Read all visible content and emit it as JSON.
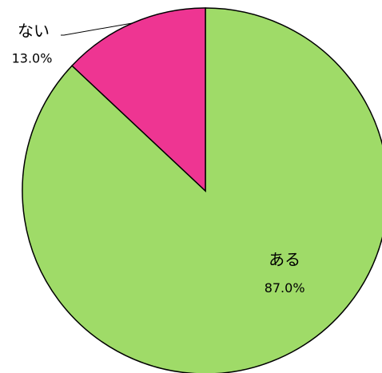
{
  "chart_data": {
    "type": "pie",
    "categories": [
      "ある",
      "ない"
    ],
    "values": [
      87,
      13
    ],
    "value_labels": [
      "87.0%",
      "13.0%"
    ],
    "colors": [
      "#9fdb68",
      "#ee3592"
    ]
  }
}
